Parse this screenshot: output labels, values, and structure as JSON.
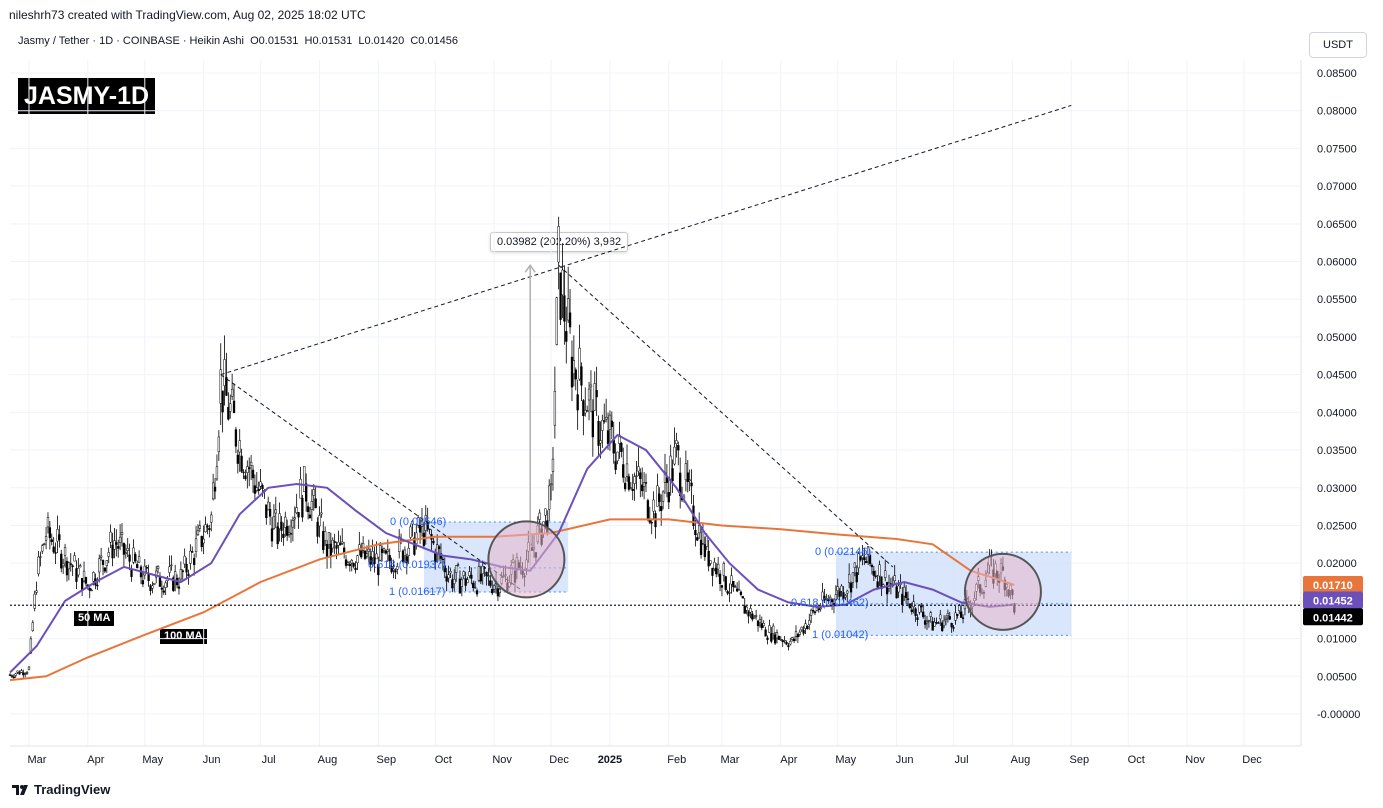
{
  "header": {
    "created_by": "nileshrh73 created with TradingView.com, Aug 02, 2025 18:02 UTC",
    "symbol_line": "Jasmy / Tether · 1D · COINBASE · Heikin Ashi  O0.01531  H0.01531  L0.01420  C0.01456",
    "badge": "JASMY-1D",
    "currency": "USDT"
  },
  "labels": {
    "ma50": "50 MA",
    "ma100": "100 MA",
    "measure": "0.03982 (202.20%) 3,982",
    "fib_left_0": "0 (0.02546)",
    "fib_left_618": "0.618 (0.01937)",
    "fib_left_1": "1 (0.01617)",
    "fib_right_0": "0 (0.02146)",
    "fib_right_618": "0.618 (0.01462)",
    "fib_right_1": "1 (0.01042)"
  },
  "footer": {
    "brand": "TradingView"
  },
  "colors": {
    "ma50": "#6b4fbb",
    "ma100": "#e8763a",
    "zone_fill": "#cfe0fb",
    "circle_fill": "#e8b4c8",
    "fib_text": "#4a8cf0"
  },
  "chart_data": {
    "type": "candlestick",
    "title": "Jasmy / Tether · 1D · COINBASE · Heikin Ashi",
    "ylim": [
      -0.001,
      0.088
    ],
    "y_ticks": [
      "0.08500",
      "0.08000",
      "0.07500",
      "0.07000",
      "0.06500",
      "0.06000",
      "0.05500",
      "0.05000",
      "0.04500",
      "0.04000",
      "0.03500",
      "0.03000",
      "0.02500",
      "0.02000",
      "0.01500",
      "0.01000",
      "0.00500",
      "-0.00000"
    ],
    "x_ticks": [
      "Mar",
      "Apr",
      "May",
      "Jun",
      "Jul",
      "Aug",
      "Sep",
      "Oct",
      "Nov",
      "Dec",
      "2025",
      "Feb",
      "Mar",
      "Apr",
      "May",
      "Jun",
      "Jul",
      "Aug",
      "Sep",
      "Oct",
      "Nov",
      "Dec"
    ],
    "last_price": "0.01442",
    "ma100_value": "0.01710",
    "ma50_value": "0.01452",
    "ma50_series": [
      {
        "d": "2024-02-20",
        "v": 0.0055
      },
      {
        "d": "2024-03-05",
        "v": 0.009
      },
      {
        "d": "2024-03-20",
        "v": 0.015
      },
      {
        "d": "2024-04-05",
        "v": 0.0175
      },
      {
        "d": "2024-04-20",
        "v": 0.0195
      },
      {
        "d": "2024-05-05",
        "v": 0.0185
      },
      {
        "d": "2024-05-20",
        "v": 0.0175
      },
      {
        "d": "2024-06-05",
        "v": 0.02
      },
      {
        "d": "2024-06-20",
        "v": 0.0265
      },
      {
        "d": "2024-07-05",
        "v": 0.03
      },
      {
        "d": "2024-07-20",
        "v": 0.0305
      },
      {
        "d": "2024-08-05",
        "v": 0.03
      },
      {
        "d": "2024-08-20",
        "v": 0.027
      },
      {
        "d": "2024-09-05",
        "v": 0.024
      },
      {
        "d": "2024-09-20",
        "v": 0.0225
      },
      {
        "d": "2024-10-05",
        "v": 0.021
      },
      {
        "d": "2024-10-20",
        "v": 0.0205
      },
      {
        "d": "2024-11-05",
        "v": 0.0195
      },
      {
        "d": "2024-11-20",
        "v": 0.019
      },
      {
        "d": "2024-12-05",
        "v": 0.024
      },
      {
        "d": "2024-12-20",
        "v": 0.0325
      },
      {
        "d": "2025-01-05",
        "v": 0.037
      },
      {
        "d": "2025-01-20",
        "v": 0.035
      },
      {
        "d": "2025-02-05",
        "v": 0.03
      },
      {
        "d": "2025-02-20",
        "v": 0.024
      },
      {
        "d": "2025-03-05",
        "v": 0.02
      },
      {
        "d": "2025-03-20",
        "v": 0.0165
      },
      {
        "d": "2025-04-05",
        "v": 0.0148
      },
      {
        "d": "2025-04-20",
        "v": 0.0142
      },
      {
        "d": "2025-05-05",
        "v": 0.0145
      },
      {
        "d": "2025-05-20",
        "v": 0.0165
      },
      {
        "d": "2025-06-05",
        "v": 0.0175
      },
      {
        "d": "2025-06-20",
        "v": 0.0165
      },
      {
        "d": "2025-07-05",
        "v": 0.0148
      },
      {
        "d": "2025-07-20",
        "v": 0.0142
      },
      {
        "d": "2025-08-02",
        "v": 0.01452
      }
    ],
    "ma100_series": [
      {
        "d": "2024-02-20",
        "v": 0.0045
      },
      {
        "d": "2024-03-10",
        "v": 0.005
      },
      {
        "d": "2024-04-01",
        "v": 0.0075
      },
      {
        "d": "2024-05-01",
        "v": 0.0105
      },
      {
        "d": "2024-06-01",
        "v": 0.0135
      },
      {
        "d": "2024-07-01",
        "v": 0.0175
      },
      {
        "d": "2024-08-01",
        "v": 0.0205
      },
      {
        "d": "2024-09-01",
        "v": 0.0225
      },
      {
        "d": "2024-10-01",
        "v": 0.0235
      },
      {
        "d": "2024-11-01",
        "v": 0.0235
      },
      {
        "d": "2024-12-01",
        "v": 0.024
      },
      {
        "d": "2025-01-01",
        "v": 0.0258
      },
      {
        "d": "2025-02-01",
        "v": 0.0258
      },
      {
        "d": "2025-03-01",
        "v": 0.025
      },
      {
        "d": "2025-04-01",
        "v": 0.0245
      },
      {
        "d": "2025-05-01",
        "v": 0.0238
      },
      {
        "d": "2025-06-01",
        "v": 0.0232
      },
      {
        "d": "2025-06-20",
        "v": 0.0225
      },
      {
        "d": "2025-07-10",
        "v": 0.019
      },
      {
        "d": "2025-07-25",
        "v": 0.0178
      },
      {
        "d": "2025-08-02",
        "v": 0.0171
      }
    ],
    "price_path": [
      {
        "d": "2024-02-20",
        "v": 0.0052
      },
      {
        "d": "2024-03-01",
        "v": 0.006
      },
      {
        "d": "2024-03-05",
        "v": 0.018
      },
      {
        "d": "2024-03-10",
        "v": 0.024
      },
      {
        "d": "2024-03-20",
        "v": 0.021
      },
      {
        "d": "2024-04-01",
        "v": 0.017
      },
      {
        "d": "2024-04-15",
        "v": 0.023
      },
      {
        "d": "2024-05-01",
        "v": 0.018
      },
      {
        "d": "2024-05-20",
        "v": 0.018
      },
      {
        "d": "2024-06-05",
        "v": 0.026
      },
      {
        "d": "2024-06-10",
        "v": 0.044
      },
      {
        "d": "2024-06-20",
        "v": 0.036
      },
      {
        "d": "2024-07-01",
        "v": 0.029
      },
      {
        "d": "2024-07-10",
        "v": 0.024
      },
      {
        "d": "2024-07-25",
        "v": 0.03
      },
      {
        "d": "2024-08-05",
        "v": 0.022
      },
      {
        "d": "2024-08-20",
        "v": 0.021
      },
      {
        "d": "2024-09-05",
        "v": 0.02
      },
      {
        "d": "2024-09-25",
        "v": 0.0245
      },
      {
        "d": "2024-10-10",
        "v": 0.018
      },
      {
        "d": "2024-11-05",
        "v": 0.0175
      },
      {
        "d": "2024-11-20",
        "v": 0.021
      },
      {
        "d": "2024-12-01",
        "v": 0.028
      },
      {
        "d": "2024-12-05",
        "v": 0.059
      },
      {
        "d": "2024-12-12",
        "v": 0.047
      },
      {
        "d": "2024-12-25",
        "v": 0.039
      },
      {
        "d": "2025-01-10",
        "v": 0.033
      },
      {
        "d": "2025-01-25",
        "v": 0.027
      },
      {
        "d": "2025-02-05",
        "v": 0.034
      },
      {
        "d": "2025-02-20",
        "v": 0.022
      },
      {
        "d": "2025-03-10",
        "v": 0.015
      },
      {
        "d": "2025-03-25",
        "v": 0.011
      },
      {
        "d": "2025-04-07",
        "v": 0.0095
      },
      {
        "d": "2025-04-20",
        "v": 0.014
      },
      {
        "d": "2025-05-05",
        "v": 0.017
      },
      {
        "d": "2025-05-15",
        "v": 0.0205
      },
      {
        "d": "2025-06-01",
        "v": 0.0165
      },
      {
        "d": "2025-06-20",
        "v": 0.012
      },
      {
        "d": "2025-07-05",
        "v": 0.013
      },
      {
        "d": "2025-07-20",
        "v": 0.019
      },
      {
        "d": "2025-07-28",
        "v": 0.0185
      },
      {
        "d": "2025-08-02",
        "v": 0.0145
      }
    ],
    "trendlines": [
      {
        "from": {
          "d": "2024-06-10",
          "v": 0.045
        },
        "to": {
          "d": "2025-09-01",
          "v": 0.0807
        }
      },
      {
        "from": {
          "d": "2024-06-10",
          "v": 0.045
        },
        "to": {
          "d": "2024-11-15",
          "v": 0.0165
        }
      },
      {
        "from": {
          "d": "2024-12-05",
          "v": 0.0595
        },
        "to": {
          "d": "2025-05-30",
          "v": 0.0195
        }
      }
    ],
    "fib_zones": [
      {
        "from": "2024-09-25",
        "to": "2024-12-10",
        "top": 0.02546,
        "mid": 0.01937,
        "bottom": 0.01617
      },
      {
        "from": "2025-04-30",
        "to": "2025-09-01",
        "top": 0.02146,
        "mid": 0.01462,
        "bottom": 0.01042
      }
    ],
    "highlight_circles": [
      {
        "d": "2024-11-18",
        "v": 0.0205
      },
      {
        "d": "2025-07-27",
        "v": 0.0162
      }
    ],
    "measure": {
      "d": "2024-11-20",
      "from": 0.0197,
      "to": 0.0595
    }
  }
}
